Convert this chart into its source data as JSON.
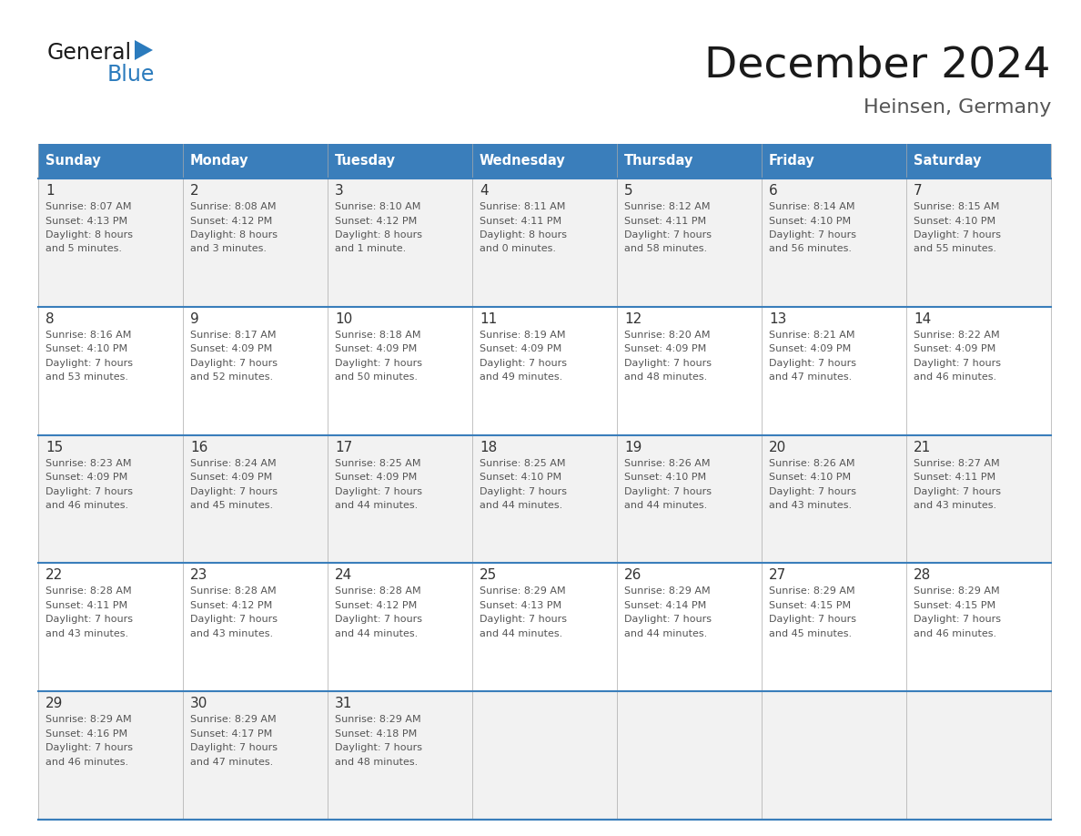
{
  "title": "December 2024",
  "subtitle": "Heinsen, Germany",
  "header_color": "#3A7EBB",
  "header_text_color": "#FFFFFF",
  "day_names": [
    "Sunday",
    "Monday",
    "Tuesday",
    "Wednesday",
    "Thursday",
    "Friday",
    "Saturday"
  ],
  "days": [
    {
      "day": 1,
      "col": 0,
      "row": 0,
      "sunrise": "8:07 AM",
      "sunset": "4:13 PM",
      "dl_line1": "Daylight: 8 hours",
      "dl_line2": "and 5 minutes."
    },
    {
      "day": 2,
      "col": 1,
      "row": 0,
      "sunrise": "8:08 AM",
      "sunset": "4:12 PM",
      "dl_line1": "Daylight: 8 hours",
      "dl_line2": "and 3 minutes."
    },
    {
      "day": 3,
      "col": 2,
      "row": 0,
      "sunrise": "8:10 AM",
      "sunset": "4:12 PM",
      "dl_line1": "Daylight: 8 hours",
      "dl_line2": "and 1 minute."
    },
    {
      "day": 4,
      "col": 3,
      "row": 0,
      "sunrise": "8:11 AM",
      "sunset": "4:11 PM",
      "dl_line1": "Daylight: 8 hours",
      "dl_line2": "and 0 minutes."
    },
    {
      "day": 5,
      "col": 4,
      "row": 0,
      "sunrise": "8:12 AM",
      "sunset": "4:11 PM",
      "dl_line1": "Daylight: 7 hours",
      "dl_line2": "and 58 minutes."
    },
    {
      "day": 6,
      "col": 5,
      "row": 0,
      "sunrise": "8:14 AM",
      "sunset": "4:10 PM",
      "dl_line1": "Daylight: 7 hours",
      "dl_line2": "and 56 minutes."
    },
    {
      "day": 7,
      "col": 6,
      "row": 0,
      "sunrise": "8:15 AM",
      "sunset": "4:10 PM",
      "dl_line1": "Daylight: 7 hours",
      "dl_line2": "and 55 minutes."
    },
    {
      "day": 8,
      "col": 0,
      "row": 1,
      "sunrise": "8:16 AM",
      "sunset": "4:10 PM",
      "dl_line1": "Daylight: 7 hours",
      "dl_line2": "and 53 minutes."
    },
    {
      "day": 9,
      "col": 1,
      "row": 1,
      "sunrise": "8:17 AM",
      "sunset": "4:09 PM",
      "dl_line1": "Daylight: 7 hours",
      "dl_line2": "and 52 minutes."
    },
    {
      "day": 10,
      "col": 2,
      "row": 1,
      "sunrise": "8:18 AM",
      "sunset": "4:09 PM",
      "dl_line1": "Daylight: 7 hours",
      "dl_line2": "and 50 minutes."
    },
    {
      "day": 11,
      "col": 3,
      "row": 1,
      "sunrise": "8:19 AM",
      "sunset": "4:09 PM",
      "dl_line1": "Daylight: 7 hours",
      "dl_line2": "and 49 minutes."
    },
    {
      "day": 12,
      "col": 4,
      "row": 1,
      "sunrise": "8:20 AM",
      "sunset": "4:09 PM",
      "dl_line1": "Daylight: 7 hours",
      "dl_line2": "and 48 minutes."
    },
    {
      "day": 13,
      "col": 5,
      "row": 1,
      "sunrise": "8:21 AM",
      "sunset": "4:09 PM",
      "dl_line1": "Daylight: 7 hours",
      "dl_line2": "and 47 minutes."
    },
    {
      "day": 14,
      "col": 6,
      "row": 1,
      "sunrise": "8:22 AM",
      "sunset": "4:09 PM",
      "dl_line1": "Daylight: 7 hours",
      "dl_line2": "and 46 minutes."
    },
    {
      "day": 15,
      "col": 0,
      "row": 2,
      "sunrise": "8:23 AM",
      "sunset": "4:09 PM",
      "dl_line1": "Daylight: 7 hours",
      "dl_line2": "and 46 minutes."
    },
    {
      "day": 16,
      "col": 1,
      "row": 2,
      "sunrise": "8:24 AM",
      "sunset": "4:09 PM",
      "dl_line1": "Daylight: 7 hours",
      "dl_line2": "and 45 minutes."
    },
    {
      "day": 17,
      "col": 2,
      "row": 2,
      "sunrise": "8:25 AM",
      "sunset": "4:09 PM",
      "dl_line1": "Daylight: 7 hours",
      "dl_line2": "and 44 minutes."
    },
    {
      "day": 18,
      "col": 3,
      "row": 2,
      "sunrise": "8:25 AM",
      "sunset": "4:10 PM",
      "dl_line1": "Daylight: 7 hours",
      "dl_line2": "and 44 minutes."
    },
    {
      "day": 19,
      "col": 4,
      "row": 2,
      "sunrise": "8:26 AM",
      "sunset": "4:10 PM",
      "dl_line1": "Daylight: 7 hours",
      "dl_line2": "and 44 minutes."
    },
    {
      "day": 20,
      "col": 5,
      "row": 2,
      "sunrise": "8:26 AM",
      "sunset": "4:10 PM",
      "dl_line1": "Daylight: 7 hours",
      "dl_line2": "and 43 minutes."
    },
    {
      "day": 21,
      "col": 6,
      "row": 2,
      "sunrise": "8:27 AM",
      "sunset": "4:11 PM",
      "dl_line1": "Daylight: 7 hours",
      "dl_line2": "and 43 minutes."
    },
    {
      "day": 22,
      "col": 0,
      "row": 3,
      "sunrise": "8:28 AM",
      "sunset": "4:11 PM",
      "dl_line1": "Daylight: 7 hours",
      "dl_line2": "and 43 minutes."
    },
    {
      "day": 23,
      "col": 1,
      "row": 3,
      "sunrise": "8:28 AM",
      "sunset": "4:12 PM",
      "dl_line1": "Daylight: 7 hours",
      "dl_line2": "and 43 minutes."
    },
    {
      "day": 24,
      "col": 2,
      "row": 3,
      "sunrise": "8:28 AM",
      "sunset": "4:12 PM",
      "dl_line1": "Daylight: 7 hours",
      "dl_line2": "and 44 minutes."
    },
    {
      "day": 25,
      "col": 3,
      "row": 3,
      "sunrise": "8:29 AM",
      "sunset": "4:13 PM",
      "dl_line1": "Daylight: 7 hours",
      "dl_line2": "and 44 minutes."
    },
    {
      "day": 26,
      "col": 4,
      "row": 3,
      "sunrise": "8:29 AM",
      "sunset": "4:14 PM",
      "dl_line1": "Daylight: 7 hours",
      "dl_line2": "and 44 minutes."
    },
    {
      "day": 27,
      "col": 5,
      "row": 3,
      "sunrise": "8:29 AM",
      "sunset": "4:15 PM",
      "dl_line1": "Daylight: 7 hours",
      "dl_line2": "and 45 minutes."
    },
    {
      "day": 28,
      "col": 6,
      "row": 3,
      "sunrise": "8:29 AM",
      "sunset": "4:15 PM",
      "dl_line1": "Daylight: 7 hours",
      "dl_line2": "and 46 minutes."
    },
    {
      "day": 29,
      "col": 0,
      "row": 4,
      "sunrise": "8:29 AM",
      "sunset": "4:16 PM",
      "dl_line1": "Daylight: 7 hours",
      "dl_line2": "and 46 minutes."
    },
    {
      "day": 30,
      "col": 1,
      "row": 4,
      "sunrise": "8:29 AM",
      "sunset": "4:17 PM",
      "dl_line1": "Daylight: 7 hours",
      "dl_line2": "and 47 minutes."
    },
    {
      "day": 31,
      "col": 2,
      "row": 4,
      "sunrise": "8:29 AM",
      "sunset": "4:18 PM",
      "dl_line1": "Daylight: 7 hours",
      "dl_line2": "and 48 minutes."
    }
  ],
  "num_rows": 5,
  "num_cols": 7,
  "bg_color": "#FFFFFF",
  "row0_bg": "#F2F2F2",
  "row1_bg": "#FFFFFF",
  "row2_bg": "#F2F2F2",
  "row3_bg": "#FFFFFF",
  "row4_bg": "#F2F2F2",
  "grid_color": "#AAAAAA",
  "row_divider_color": "#3A7EBB",
  "day_num_color": "#333333",
  "text_color": "#555555",
  "logo_general_color": "#1A1A1A",
  "logo_blue_color": "#2B7BBD",
  "title_color": "#1A1A1A",
  "subtitle_color": "#555555"
}
